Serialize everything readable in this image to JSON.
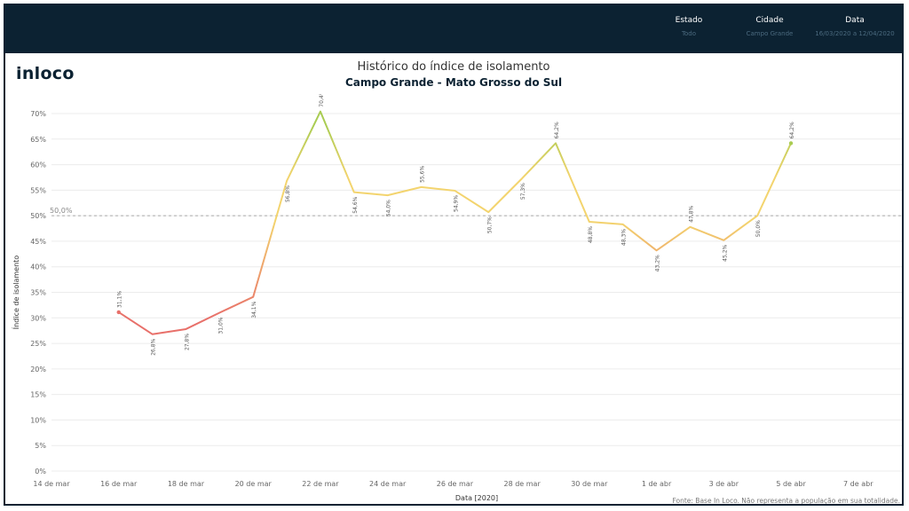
{
  "header": {
    "filters": [
      {
        "label": "Estado",
        "value": "Todo"
      },
      {
        "label": "Cidade",
        "value": "Campo Grande"
      },
      {
        "label": "Data",
        "value": "16/03/2020 a 12/04/2020"
      }
    ]
  },
  "logo": "inloco",
  "chart_data": {
    "type": "line",
    "title": "Histórico do índice de isolamento",
    "subtitle": "Campo Grande - Mato Grosso do Sul",
    "xlabel": "Data [2020]",
    "ylabel": "Índice de isolamento",
    "source_note": "Fonte: Base In Loco. Não representa a população em sua totalidade.",
    "reference_line": {
      "value": 50.0,
      "label": "50,0%"
    },
    "ylim": [
      0,
      70
    ],
    "yticks": [
      0,
      5,
      10,
      15,
      20,
      25,
      30,
      35,
      40,
      45,
      50,
      55,
      60,
      65,
      70
    ],
    "ytick_labels": [
      "0%",
      "5%",
      "10%",
      "15%",
      "20%",
      "25%",
      "30%",
      "35%",
      "40%",
      "45%",
      "50%",
      "55%",
      "60%",
      "65%",
      "70%"
    ],
    "xlim_day": [
      -1,
      24.3
    ],
    "xticks": [
      {
        "day": -1,
        "label": "14 de mar"
      },
      {
        "day": 1,
        "label": "16 de mar"
      },
      {
        "day": 3,
        "label": "18 de mar"
      },
      {
        "day": 5,
        "label": "20 de mar"
      },
      {
        "day": 7,
        "label": "22 de mar"
      },
      {
        "day": 9,
        "label": "24 de mar"
      },
      {
        "day": 11,
        "label": "26 de mar"
      },
      {
        "day": 13,
        "label": "28 de mar"
      },
      {
        "day": 15,
        "label": "30 de mar"
      },
      {
        "day": 17,
        "label": "1 de abr"
      },
      {
        "day": 19,
        "label": "3 de abr"
      },
      {
        "day": 21,
        "label": "5 de abr"
      },
      {
        "day": 23,
        "label": "7 de abr"
      }
    ],
    "points": [
      {
        "day": 1,
        "date": "16/03/2020",
        "value": 31.1,
        "label": "31,1%"
      },
      {
        "day": 2,
        "date": "17/03/2020",
        "value": 26.8,
        "label": "26,8%"
      },
      {
        "day": 3,
        "date": "18/03/2020",
        "value": 27.8,
        "label": "27,8%"
      },
      {
        "day": 4,
        "date": "19/03/2020",
        "value": 31.0,
        "label": "31,0%"
      },
      {
        "day": 5,
        "date": "20/03/2020",
        "value": 34.1,
        "label": "34,1%"
      },
      {
        "day": 6,
        "date": "21/03/2020",
        "value": 56.8,
        "label": "56,8%"
      },
      {
        "day": 7,
        "date": "22/03/2020",
        "value": 70.4,
        "label": "70,4%"
      },
      {
        "day": 8,
        "date": "23/03/2020",
        "value": 54.6,
        "label": "54,6%"
      },
      {
        "day": 9,
        "date": "24/03/2020",
        "value": 54.0,
        "label": "54,0%"
      },
      {
        "day": 10,
        "date": "25/03/2020",
        "value": 55.6,
        "label": "55,6%"
      },
      {
        "day": 11,
        "date": "26/03/2020",
        "value": 54.9,
        "label": "54,9%"
      },
      {
        "day": 12,
        "date": "27/03/2020",
        "value": 50.7,
        "label": "50,7%"
      },
      {
        "day": 13,
        "date": "28/03/2020",
        "value": 57.3,
        "label": "57,3%"
      },
      {
        "day": 14,
        "date": "29/03/2020",
        "value": 64.2,
        "label": "64,2%"
      },
      {
        "day": 15,
        "date": "30/03/2020",
        "value": 48.8,
        "label": "48,8%"
      },
      {
        "day": 16,
        "date": "31/03/2020",
        "value": 48.3,
        "label": "48,3%"
      },
      {
        "day": 17,
        "date": "01/04/2020",
        "value": 43.2,
        "label": "43,2%"
      },
      {
        "day": 18,
        "date": "02/04/2020",
        "value": 47.8,
        "label": "47,8%"
      },
      {
        "day": 19,
        "date": "03/04/2020",
        "value": 45.2,
        "label": "45,2%"
      },
      {
        "day": 20,
        "date": "04/04/2020",
        "value": 50.0,
        "label": "50,0%"
      },
      {
        "day": 21,
        "date": "05/04/2020",
        "value": 64.2,
        "label": "64,2%"
      }
    ],
    "color_scale": {
      "low": "#e8706a",
      "mid": "#f3d46e",
      "high": "#a9cc52"
    },
    "grid": true,
    "legend": "none"
  }
}
